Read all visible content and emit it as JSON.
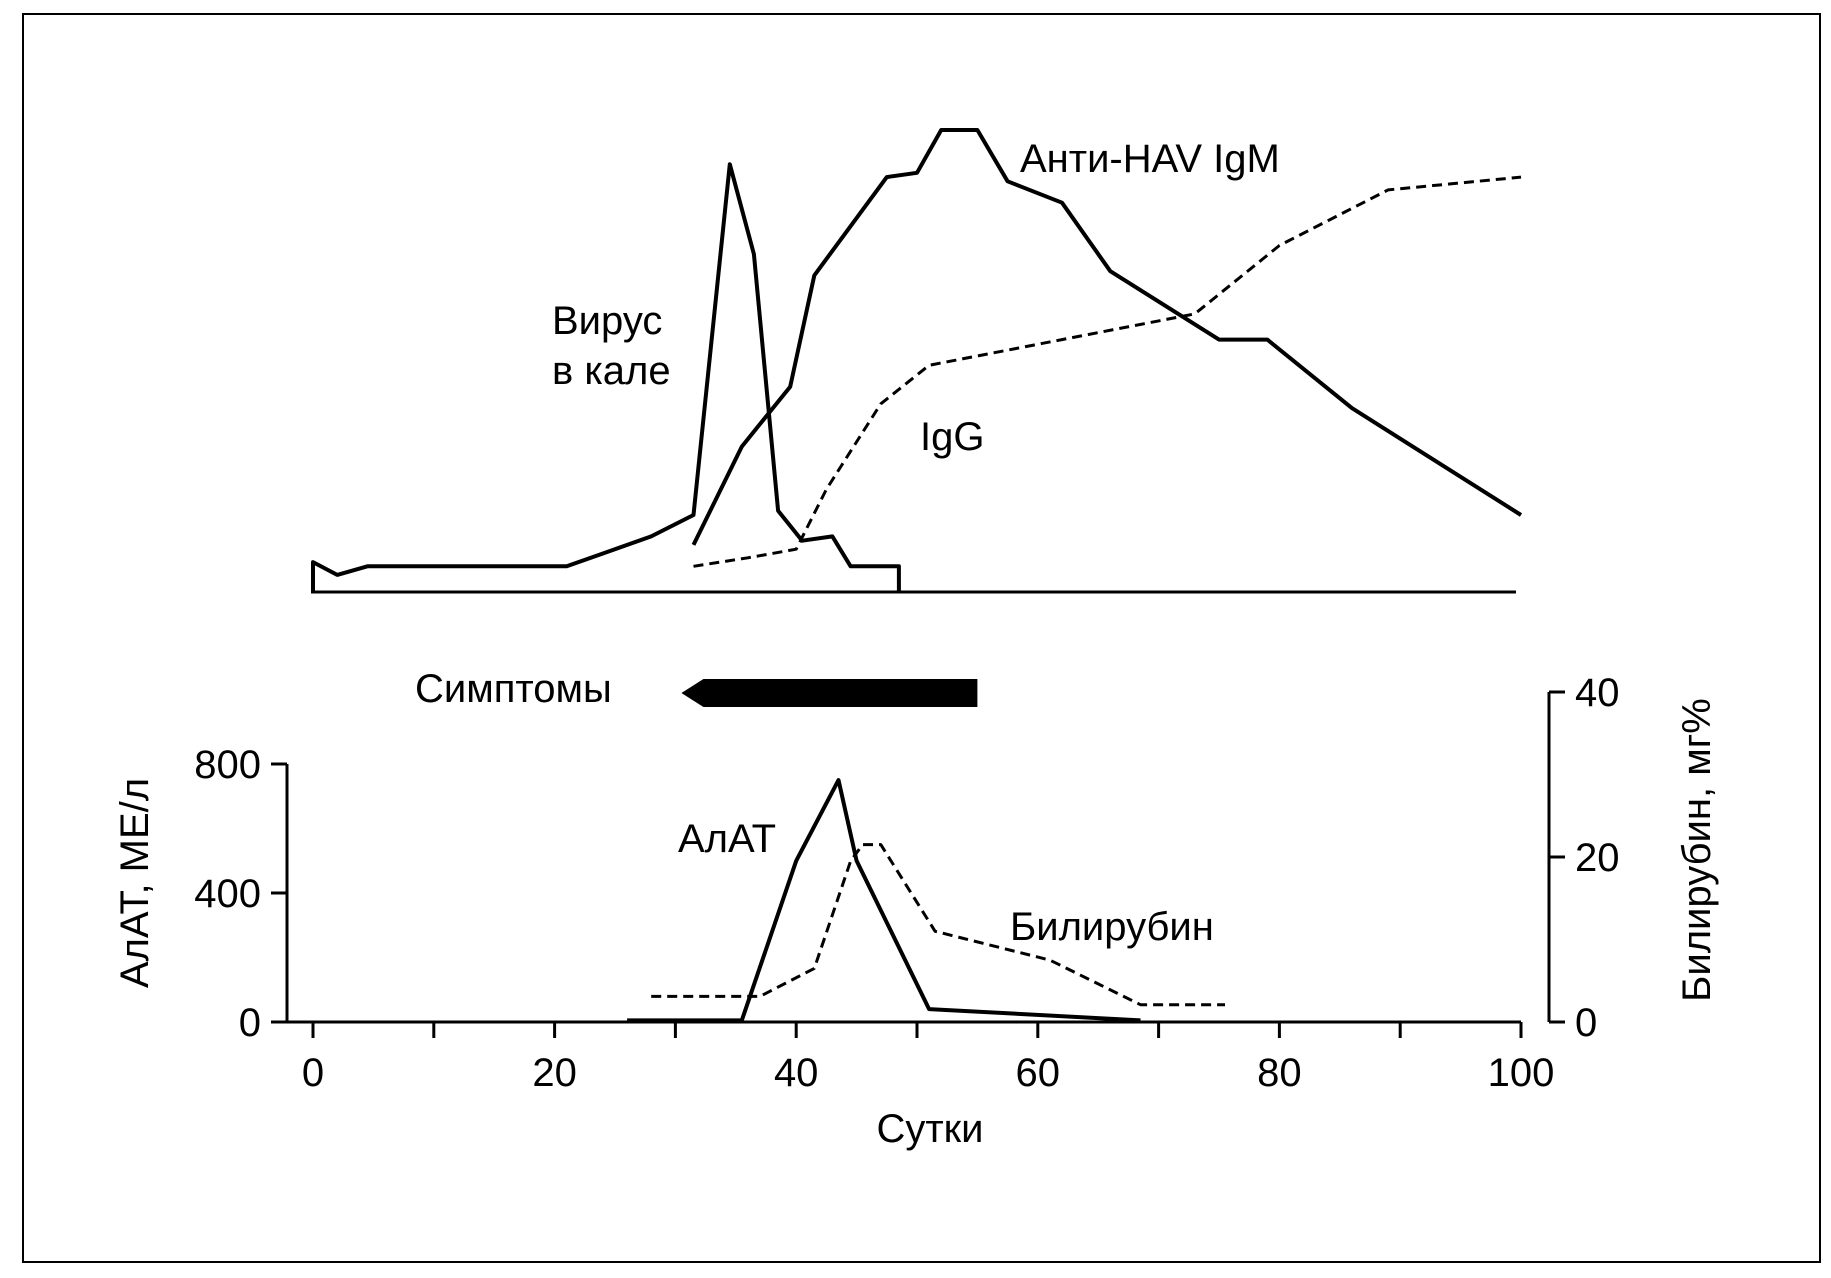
{
  "chart_data": [
    {
      "type": "line",
      "panel": "upper",
      "x_unit": "days",
      "xlim": [
        0,
        100
      ],
      "series": [
        {
          "name": "Вирус в кале",
          "label_lines": [
            "Вирус",
            "в кале"
          ],
          "style": "solid",
          "x": [
            0,
            2,
            4.5,
            10,
            21,
            24,
            28,
            31.5,
            34.5,
            36.5,
            38.5,
            40.5,
            43,
            44.5,
            48.5
          ],
          "y": [
            7,
            4,
            6,
            6,
            6,
            9,
            13,
            18,
            100,
            79,
            19,
            12,
            13,
            6,
            6
          ]
        },
        {
          "name": "Анти-HAV IgM",
          "label_lines": [
            "Анти-HAV IgM"
          ],
          "style": "solid",
          "x": [
            31.5,
            35.5,
            39.5,
            41.5,
            47.5,
            50,
            52,
            55,
            57.5,
            62,
            66,
            75,
            79,
            86,
            100
          ],
          "y": [
            11,
            34,
            48,
            74,
            97,
            98,
            108,
            108,
            96,
            91,
            75,
            59,
            59,
            43,
            18
          ]
        },
        {
          "name": "IgG",
          "label_lines": [
            "IgG"
          ],
          "style": "dashed",
          "x": [
            31.5,
            36,
            40,
            42.5,
            47,
            51,
            62,
            73,
            80,
            89,
            100
          ],
          "y": [
            6,
            8,
            10,
            24,
            44,
            53,
            59,
            65,
            81,
            94,
            97
          ]
        }
      ]
    },
    {
      "type": "bar",
      "panel": "symptoms",
      "label": "Симптомы",
      "x_range": [
        30.5,
        55
      ]
    },
    {
      "type": "line",
      "panel": "lower",
      "xlabel": "Сутки",
      "ylabel": "АлАТ, МЕ/л",
      "ylabel_right": "Билирубин, мг%",
      "xlim": [
        0,
        100
      ],
      "ylim": [
        0,
        800
      ],
      "ylim_right": [
        0,
        40
      ],
      "x_ticks": [
        0,
        20,
        40,
        60,
        80,
        100
      ],
      "y_ticks": [
        0,
        400,
        800
      ],
      "y_ticks_right": [
        0,
        20,
        40
      ],
      "series": [
        {
          "name": "АлАТ",
          "axis": "left",
          "style": "solid",
          "x": [
            26,
            35.5,
            40,
            43.5,
            45,
            51,
            68.5
          ],
          "y": [
            5,
            5,
            500,
            750,
            500,
            40,
            5
          ]
        },
        {
          "name": "Билирубин",
          "axis": "right",
          "style": "dashed",
          "x": [
            28,
            37,
            41.5,
            44.5,
            45.5,
            47,
            51.5,
            61,
            68.5,
            75.5
          ],
          "y": [
            3.1,
            3.1,
            6.5,
            19.5,
            21.5,
            21.5,
            11,
            7.5,
            2.1,
            2.1
          ]
        }
      ]
    }
  ]
}
